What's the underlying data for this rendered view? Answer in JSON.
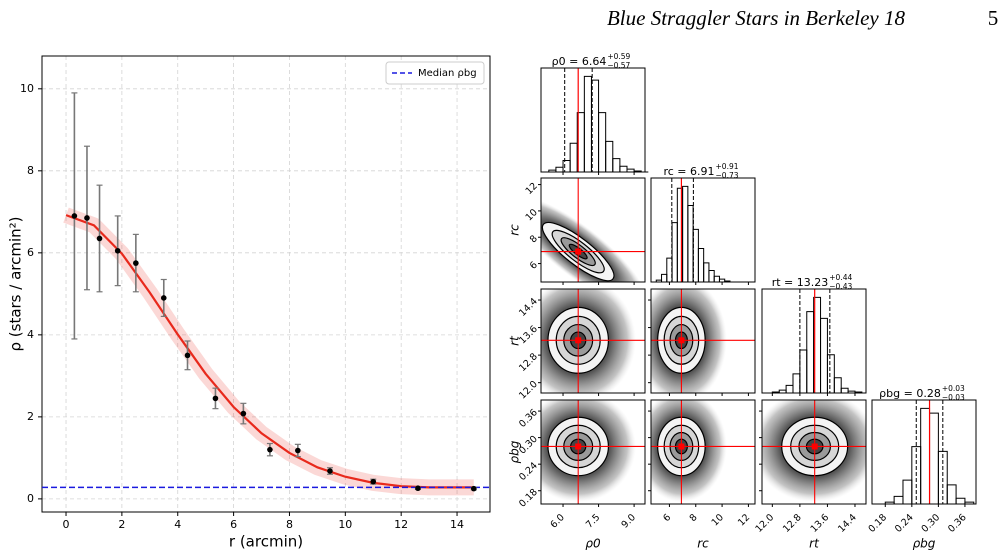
{
  "header": {
    "title": "Blue Straggler Stars in Berkeley 18",
    "page": "5"
  },
  "chart_data": [
    {
      "type": "errorbar",
      "xlabel": "r (arcmin)",
      "ylabel": "ρ (stars / arcmin²)",
      "x": [
        0.3,
        0.75,
        1.2,
        1.85,
        2.5,
        3.5,
        4.35,
        5.35,
        6.35,
        7.3,
        8.3,
        9.45,
        11.0,
        12.6,
        14.6
      ],
      "values": [
        6.9,
        6.85,
        6.35,
        6.05,
        5.75,
        4.9,
        3.5,
        2.45,
        2.08,
        1.2,
        1.18,
        0.68,
        0.42,
        0.26,
        0.25
      ],
      "errors": [
        3.0,
        1.75,
        1.3,
        0.85,
        0.7,
        0.45,
        0.35,
        0.25,
        0.25,
        0.15,
        0.15,
        0.08,
        0.06,
        0.03,
        0.03
      ],
      "color": "#000000",
      "model": {
        "color": "#e8291c",
        "x": [
          0,
          1,
          2,
          3,
          4,
          5,
          6,
          7,
          8,
          9,
          10,
          11,
          12,
          13,
          14,
          14.6
        ],
        "values": [
          6.92,
          6.67,
          5.98,
          5.03,
          4.01,
          3.05,
          2.24,
          1.6,
          1.12,
          0.77,
          0.54,
          0.39,
          0.31,
          0.28,
          0.28,
          0.28
        ]
      },
      "hline": {
        "name": "Median ρbg",
        "value": 0.28,
        "color": "#1a1adf"
      },
      "xlim": [
        -0.86,
        15.18
      ],
      "ylim": [
        -0.32,
        10.8
      ],
      "xticks": [
        0,
        2,
        4,
        6,
        8,
        10,
        12,
        14
      ],
      "yticks": [
        0,
        2,
        4,
        6,
        8,
        10
      ],
      "grid": true,
      "legend": "upper right"
    },
    {
      "type": "corner",
      "color": "#000000",
      "median_color": "#ff0000",
      "params": [
        {
          "label": "ρ0",
          "title": "ρ0 = 6.64",
          "median": 6.64,
          "plus": 0.59,
          "plus_label": "+0.59",
          "minus": 0.57,
          "minus_label": "−0.57",
          "lim": [
            5.07,
            9.46
          ],
          "ticks": [
            {
              "value": 6,
              "label": "6.0"
            },
            7.5,
            {
              "value": 9,
              "label": "9.0"
            }
          ],
          "bins": [
            5.4,
            5.7,
            6.0,
            6.3,
            6.6,
            6.9,
            7.2,
            7.5,
            7.8,
            8.1,
            8.4,
            8.7,
            9.0,
            9.3,
            9.6
          ],
          "counts": [
            2,
            5,
            12,
            30,
            62,
            100,
            96,
            62,
            32,
            14,
            6,
            3,
            1,
            0
          ]
        },
        {
          "label": "rc",
          "title": "rc = 6.91",
          "median": 6.91,
          "plus": 0.91,
          "plus_label": "+0.91",
          "minus": 0.73,
          "minus_label": "−0.73",
          "lim": [
            4.6,
            12.5
          ],
          "ticks": [
            6,
            8,
            10,
            12
          ],
          "bins": [
            5.0,
            5.4,
            5.8,
            6.2,
            6.6,
            7.0,
            7.4,
            7.8,
            8.2,
            8.6,
            9.0,
            9.4,
            9.8,
            10.2,
            10.6,
            11.0
          ],
          "counts": [
            2,
            8,
            25,
            62,
            98,
            100,
            80,
            55,
            35,
            20,
            12,
            6,
            3,
            1,
            0
          ]
        },
        {
          "label": "rt",
          "title": "rt = 13.23",
          "median": 13.23,
          "plus": 0.44,
          "plus_label": "+0.44",
          "minus": 0.43,
          "minus_label": "−0.43",
          "lim": [
            11.7,
            14.72
          ],
          "ticks": [
            {
              "value": 12,
              "label": "12.0"
            },
            12.8,
            13.6,
            14.4
          ],
          "bins": [
            12.0,
            12.2,
            12.4,
            12.6,
            12.8,
            13.0,
            13.2,
            13.4,
            13.6,
            13.8,
            14.0,
            14.2,
            14.4,
            14.6
          ],
          "counts": [
            1,
            3,
            8,
            20,
            45,
            85,
            100,
            78,
            40,
            16,
            5,
            2,
            1
          ]
        },
        {
          "label": "ρbg",
          "title": "ρbg = 0.28",
          "median": 0.28,
          "plus": 0.03,
          "plus_label": "+0.03",
          "minus": 0.03,
          "minus_label": "−0.03",
          "lim": [
            0.15,
            0.385
          ],
          "ticks": [
            0.18,
            0.24,
            {
              "value": 0.3,
              "label": "0.30"
            },
            0.36
          ],
          "bins": [
            0.18,
            0.2,
            0.22,
            0.24,
            0.26,
            0.28,
            0.3,
            0.32,
            0.34,
            0.36,
            0.38
          ],
          "counts": [
            2,
            8,
            25,
            60,
            100,
            95,
            55,
            20,
            6,
            2
          ]
        }
      ]
    }
  ]
}
